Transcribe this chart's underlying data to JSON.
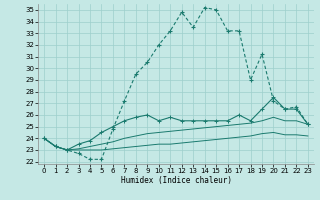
{
  "xlabel": "Humidex (Indice chaleur)",
  "bg_color": "#c5e8e5",
  "grid_color": "#9ecfcc",
  "line_color": "#1a7a6e",
  "xlim": [
    -0.5,
    23.5
  ],
  "ylim": [
    21.8,
    35.5
  ],
  "xticks": [
    0,
    1,
    2,
    3,
    4,
    5,
    6,
    7,
    8,
    9,
    10,
    11,
    12,
    13,
    14,
    15,
    16,
    17,
    18,
    19,
    20,
    21,
    22,
    23
  ],
  "yticks": [
    22,
    23,
    24,
    25,
    26,
    27,
    28,
    29,
    30,
    31,
    32,
    33,
    34,
    35
  ],
  "line1_x": [
    0,
    1,
    2,
    3,
    4,
    5,
    6,
    7,
    8,
    9,
    10,
    11,
    12,
    13,
    14,
    15,
    16,
    17,
    18,
    19,
    20,
    21,
    22,
    23
  ],
  "line1_y": [
    24.0,
    23.3,
    23.0,
    22.7,
    22.2,
    22.2,
    24.8,
    27.2,
    29.5,
    30.5,
    32.0,
    33.2,
    34.8,
    33.5,
    35.2,
    35.0,
    33.2,
    33.2,
    29.0,
    31.2,
    27.2,
    26.5,
    26.7,
    25.2
  ],
  "line2_x": [
    0,
    1,
    2,
    3,
    4,
    5,
    6,
    7,
    8,
    9,
    10,
    11,
    12,
    13,
    14,
    15,
    16,
    17,
    18,
    19,
    20,
    21,
    22,
    23
  ],
  "line2_y": [
    24.0,
    23.3,
    23.0,
    23.5,
    23.8,
    24.5,
    25.0,
    25.5,
    25.8,
    26.0,
    25.5,
    25.8,
    25.5,
    25.5,
    25.5,
    25.5,
    25.5,
    26.0,
    25.5,
    26.5,
    27.5,
    26.5,
    26.5,
    25.2
  ],
  "line3_x": [
    0,
    1,
    2,
    3,
    4,
    5,
    6,
    7,
    8,
    9,
    10,
    11,
    12,
    13,
    14,
    15,
    16,
    17,
    18,
    19,
    20,
    21,
    22,
    23
  ],
  "line3_y": [
    24.0,
    23.3,
    23.0,
    23.1,
    23.3,
    23.5,
    23.7,
    24.0,
    24.2,
    24.4,
    24.5,
    24.6,
    24.7,
    24.8,
    24.9,
    25.0,
    25.1,
    25.2,
    25.3,
    25.5,
    25.8,
    25.5,
    25.5,
    25.2
  ],
  "line4_x": [
    0,
    1,
    2,
    3,
    4,
    5,
    6,
    7,
    8,
    9,
    10,
    11,
    12,
    13,
    14,
    15,
    16,
    17,
    18,
    19,
    20,
    21,
    22,
    23
  ],
  "line4_y": [
    24.0,
    23.3,
    23.0,
    23.0,
    23.0,
    23.0,
    23.1,
    23.2,
    23.3,
    23.4,
    23.5,
    23.5,
    23.6,
    23.7,
    23.8,
    23.9,
    24.0,
    24.1,
    24.2,
    24.4,
    24.5,
    24.3,
    24.3,
    24.2
  ]
}
